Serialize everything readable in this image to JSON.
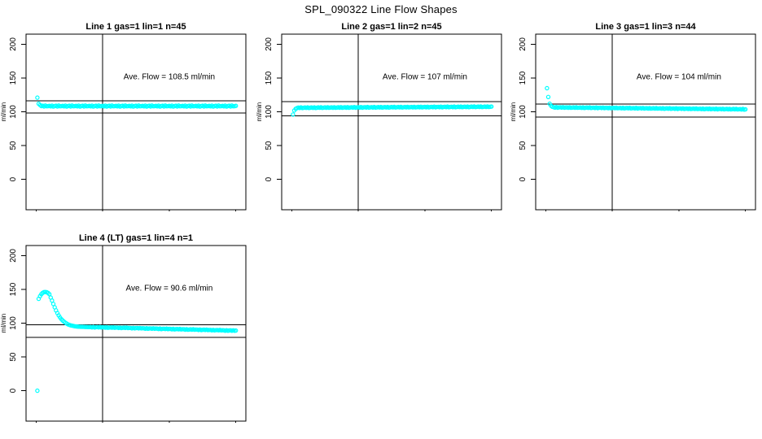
{
  "title": "SPL_090322  Line Flow Shapes",
  "chart_data": {
    "type": "scatter",
    "title": "SPL_090322  Line Flow Shapes",
    "ylabel": "ml/min",
    "xlabel": "",
    "x_ticks": [
      0,
      50,
      100,
      150
    ],
    "y_ticks": [
      0,
      50,
      100,
      150,
      200
    ],
    "xlim": [
      -7.5,
      157.5
    ],
    "ylim": [
      -45,
      215
    ],
    "grid": "off",
    "point_color": "#00ffff",
    "line_color": "#000000",
    "vline_x": 50,
    "panels": [
      {
        "title": "Line 1 gas=1 lin=1 n=45",
        "annotation": "Ave. Flow =  108.5  ml/min",
        "ave_flow_ml_min": 108.5,
        "n": 45,
        "grid": {
          "row": 0,
          "col": 0
        },
        "hline_upper": 116,
        "hline_lower": 98,
        "series": {
          "x_start": 1,
          "x_step": 1,
          "values": [
            121,
            112,
            110,
            108.5,
            109,
            107.9,
            109.3,
            108.2,
            108.4,
            108.8,
            108.1,
            109.2,
            107.8,
            108.5,
            109,
            107.9,
            109.3,
            108.2,
            108.4,
            108.8,
            108.1,
            109.2,
            107.8,
            108.5,
            109,
            107.9,
            109.3,
            108.2,
            108.4,
            108.8,
            108.1,
            109.2,
            107.8,
            108.5,
            109,
            107.9,
            109.3,
            108.2,
            108.4,
            108.8,
            108.1,
            109.2,
            107.8,
            108.5,
            109,
            107.9,
            109.3,
            108.2,
            108.4,
            108.8,
            108.1,
            109.2,
            107.8,
            108.5,
            109,
            107.9,
            109.3,
            108.2,
            108.4,
            108.8,
            108.1,
            109.2,
            107.8,
            108.5,
            109,
            107.9,
            109.3,
            108.2,
            108.4,
            108.8,
            108.1,
            109.2,
            107.8,
            108.5,
            109,
            107.9,
            109.3,
            108.2,
            108.4,
            108.8,
            108.1,
            109.2,
            107.8,
            108.5,
            109,
            107.9,
            109.3,
            108.2,
            108.4,
            108.8,
            108.1,
            109.2,
            107.8,
            108.5,
            109,
            107.9,
            109.3,
            108.2,
            108.4,
            108.8,
            108.1,
            109.2,
            107.8,
            108.5,
            109,
            107.9,
            109.3,
            108.2,
            108.4,
            108.8,
            108.1,
            109.2,
            107.8,
            108.5,
            109,
            107.9,
            109.3,
            108.2,
            108.4,
            108.8,
            108.1,
            109.2,
            107.8,
            108.5,
            109,
            107.9,
            109.3,
            108.2,
            108.4,
            108.8,
            108.1,
            109.2,
            107.8,
            108.5,
            109,
            107.9,
            109.3,
            108.2,
            108.4,
            108.8,
            108.1,
            109.2,
            107.8,
            108.5,
            109,
            107.9,
            109.3,
            108.2,
            108.4,
            108.8
          ]
        }
      },
      {
        "title": "Line 2 gas=1 lin=2 n=45",
        "annotation": "Ave. Flow =  107  ml/min",
        "ave_flow_ml_min": 107,
        "n": 45,
        "grid": {
          "row": 0,
          "col": 1
        },
        "hline_upper": 115,
        "hline_lower": 94,
        "series": {
          "x_start": 1,
          "x_step": 1,
          "values": [
            96,
            102,
            104.5,
            105.5,
            106.3,
            105.7,
            106.5,
            105.6,
            106,
            106.4,
            105.8,
            106.6,
            105.7,
            106.1,
            106.4,
            105.8,
            106.6,
            105.7,
            106.1,
            106.5,
            105.9,
            106.7,
            105.8,
            106.2,
            106.6,
            106,
            106.8,
            105.9,
            106.3,
            106.6,
            106,
            106.8,
            105.9,
            106.3,
            106.7,
            106.1,
            106.9,
            106,
            106.4,
            106.7,
            106.1,
            106.9,
            106,
            106.4,
            106.8,
            106.2,
            107,
            106.1,
            106.5,
            106.8,
            106.2,
            107,
            106.1,
            106.5,
            106.9,
            106.3,
            107.1,
            106.2,
            106.6,
            106.9,
            106.3,
            107.1,
            106.2,
            106.6,
            107,
            106.4,
            107.2,
            106.3,
            106.7,
            107,
            106.4,
            107.2,
            106.3,
            106.7,
            107.1,
            106.5,
            107.3,
            106.4,
            106.8,
            107.1,
            106.5,
            107.3,
            106.4,
            106.8,
            107.2,
            106.6,
            107.4,
            106.5,
            106.9,
            107.2,
            106.6,
            107.4,
            106.5,
            106.9,
            107.3,
            106.7,
            107.5,
            106.6,
            107,
            107.3,
            106.7,
            107.5,
            106.6,
            107,
            107.4,
            106.8,
            107.6,
            106.7,
            107.1,
            107.4,
            106.8,
            107.6,
            106.7,
            107.1,
            107.5,
            106.9,
            107.7,
            106.8,
            107.2,
            107.5,
            106.9,
            107.7,
            106.8,
            107.2,
            107.6,
            107,
            107.8,
            106.9,
            107.3,
            107.6,
            107,
            107.8,
            106.9,
            107.3,
            107.7,
            107.1,
            107.9,
            107,
            107.4,
            107.7,
            107.1,
            107.9,
            107,
            107.4,
            107.8,
            107.2,
            108,
            107.1,
            107.5,
            107.8
          ]
        }
      },
      {
        "title": "Line 3 gas=1 lin=3 n=44",
        "annotation": "Ave. Flow =  104  ml/min",
        "ave_flow_ml_min": 104,
        "n": 44,
        "grid": {
          "row": 0,
          "col": 2
        },
        "hline_upper": 111.5,
        "hline_lower": 92,
        "series": {
          "x_start": 1,
          "x_step": 1,
          "values": [
            135,
            122,
            112,
            109,
            107.5,
            106.8,
            106.2,
            107,
            106.1,
            106.5,
            106.8,
            106.2,
            106.9,
            106.1,
            106.4,
            106.6,
            106,
            106.8,
            105.9,
            106.3,
            106.6,
            106,
            106.7,
            105.9,
            106.2,
            106.4,
            105.8,
            106.6,
            105.7,
            106.1,
            106.4,
            105.8,
            106.5,
            105.7,
            106,
            106.2,
            105.6,
            106.4,
            105.5,
            105.9,
            106.2,
            105.6,
            106.3,
            105.5,
            105.8,
            106,
            105.4,
            106.2,
            105.3,
            105.7,
            106,
            105.4,
            106.1,
            105.3,
            105.6,
            105.8,
            105.2,
            106,
            105.1,
            105.5,
            105.8,
            105.2,
            105.9,
            105.1,
            105.4,
            105.6,
            105,
            105.8,
            104.9,
            105.3,
            105.6,
            105,
            105.7,
            104.9,
            105.2,
            105.4,
            104.8,
            105.6,
            104.7,
            105.1,
            105.4,
            104.8,
            105.5,
            104.7,
            105,
            105.2,
            104.6,
            105.4,
            104.5,
            104.9,
            105.2,
            104.6,
            105.3,
            104.5,
            104.8,
            105,
            104.4,
            105.2,
            104.3,
            104.7,
            105,
            104.4,
            105.1,
            104.3,
            104.6,
            104.8,
            104.2,
            105,
            104.1,
            104.5,
            104.8,
            104.2,
            104.9,
            104.1,
            104.4,
            104.6,
            104,
            104.8,
            103.9,
            104.3,
            104.6,
            104,
            104.7,
            103.9,
            104.2,
            104.4,
            103.8,
            104.6,
            103.7,
            104.1,
            104.4,
            103.8,
            104.5,
            103.7,
            104,
            104.2,
            103.6,
            104.4,
            103.5,
            103.9,
            104.2,
            103.6,
            104.3,
            103.5,
            103.8,
            104,
            103.4,
            104.2,
            103.3,
            103.7
          ]
        }
      },
      {
        "title": "Line 4 (LT) gas=1 lin=4 n=1",
        "annotation": "Ave. Flow =  90.6  ml/min",
        "ave_flow_ml_min": 90.6,
        "n": 1,
        "grid": {
          "row": 1,
          "col": 0
        },
        "hline_upper": 97.5,
        "hline_lower": 79,
        "series": {
          "x_start": 1,
          "x_step": 1,
          "values": [
            0,
            136,
            140,
            143,
            145,
            146,
            146.2,
            145.8,
            144.8,
            143,
            138,
            133.5,
            128.5,
            123.5,
            119,
            115,
            111.5,
            108.5,
            106,
            104,
            102.2,
            100.7,
            99.4,
            98.3,
            97.5,
            96.8,
            96.3,
            95.9,
            95.5,
            95.2,
            95,
            94.9,
            94.7,
            94.6,
            94.6,
            94.5,
            94.4,
            94.4,
            94.3,
            94.3,
            94.4,
            93.8,
            94.5,
            93.7,
            94.1,
            94.3,
            93.8,
            94.4,
            93.7,
            94,
            93.9,
            93.3,
            94,
            93.2,
            93.6,
            93.8,
            93.3,
            93.9,
            93.2,
            93.5,
            93.5,
            92.9,
            93.6,
            92.8,
            93.2,
            93.4,
            92.9,
            93.5,
            92.8,
            93.1,
            93,
            92.4,
            93.1,
            92.3,
            92.7,
            92.9,
            92.4,
            93,
            92.3,
            92.6,
            92.5,
            91.9,
            92.6,
            91.8,
            92.2,
            92.4,
            91.9,
            92.5,
            91.8,
            92.1,
            92,
            91.4,
            92.1,
            91.3,
            91.7,
            91.9,
            91.4,
            92,
            91.3,
            91.6,
            91.5,
            90.9,
            91.6,
            90.8,
            91.2,
            91.4,
            90.9,
            91.5,
            90.8,
            91.1,
            91,
            90.4,
            91.1,
            90.3,
            90.7,
            90.9,
            90.4,
            91,
            90.3,
            90.6,
            90.5,
            89.9,
            90.6,
            89.8,
            90.2,
            90.4,
            89.9,
            90.5,
            89.8,
            90.1,
            90,
            89.4,
            90.1,
            89.3,
            89.7,
            89.9,
            89.4,
            90,
            89.3,
            89.6,
            89.5,
            88.9,
            89.6,
            88.8,
            89.2,
            89.4,
            88.9,
            89.5,
            88.8,
            89.1
          ]
        }
      }
    ]
  }
}
